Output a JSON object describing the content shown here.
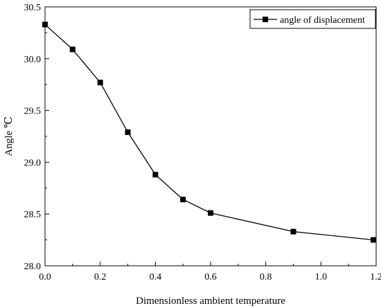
{
  "chart_data": {
    "type": "line",
    "title": "",
    "xlabel": "Dimensionless ambient temperature",
    "ylabel": "Angle ℃",
    "xlim": [
      0.0,
      1.2
    ],
    "ylim": [
      28.0,
      30.5
    ],
    "x_ticks": [
      "0.0",
      "0.2",
      "0.4",
      "0.6",
      "0.8",
      "1.0",
      "1.2"
    ],
    "y_ticks": [
      "28.0",
      "28.5",
      "29.0",
      "29.5",
      "30.0",
      "30.5"
    ],
    "grid": false,
    "legend_position": "top-right",
    "series": [
      {
        "name": "angle of displacement",
        "color": "#000000",
        "marker": "square",
        "x": [
          0.0,
          0.1,
          0.2,
          0.3,
          0.4,
          0.5,
          0.6,
          0.9,
          1.19
        ],
        "y": [
          30.33,
          30.09,
          29.77,
          29.29,
          28.88,
          28.64,
          28.51,
          28.33,
          28.25
        ]
      }
    ]
  }
}
